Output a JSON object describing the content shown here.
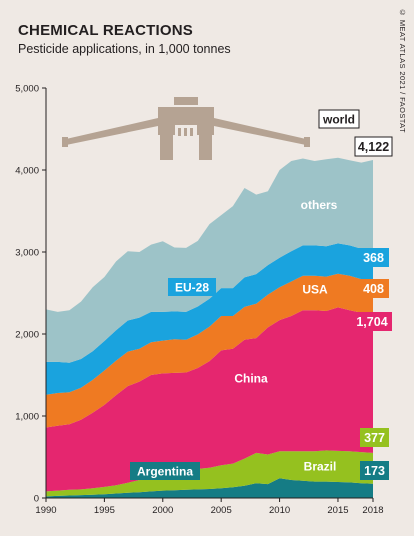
{
  "header": {
    "title": "CHEMICAL REACTIONS",
    "subtitle": "Pesticide applications, in 1,000 tonnes",
    "credit": "© MEAT ATLAS 2021 / FAOSTAT"
  },
  "colors": {
    "background": "#efe9e4",
    "Brazil_base": "#157c85",
    "Argentina": "#95c11f",
    "China": "#e5266f",
    "USA": "#ef7a22",
    "EU-28": "#1aa3de",
    "others": "#9dc3c8",
    "tractor": "#b5a393",
    "dark_label": "#231f20"
  },
  "icons": [
    "tractor-sprayer-icon"
  ],
  "chart_data": {
    "type": "area",
    "stacked": true,
    "xlim": [
      1990,
      2018
    ],
    "ylim": [
      0,
      5000
    ],
    "x_ticks": [
      "1990",
      "1995",
      "2000",
      "2005",
      "2010",
      "2015",
      "2018"
    ],
    "y_ticks": [
      "0",
      "1,000",
      "2,000",
      "3,000",
      "4,000",
      "5,000"
    ],
    "grid": false,
    "x": [
      1990,
      1991,
      1992,
      1993,
      1994,
      1995,
      1996,
      1997,
      1998,
      1999,
      2000,
      2001,
      2002,
      2003,
      2004,
      2005,
      2006,
      2007,
      2008,
      2009,
      2010,
      2011,
      2012,
      2013,
      2014,
      2015,
      2016,
      2017,
      2018
    ],
    "series": [
      {
        "key": "Brazil_base",
        "values": [
          20,
          25,
          30,
          35,
          40,
          45,
          55,
          65,
          70,
          80,
          90,
          95,
          100,
          105,
          110,
          120,
          130,
          150,
          180,
          170,
          240,
          220,
          210,
          200,
          200,
          195,
          190,
          180,
          173
        ]
      },
      {
        "key": "Argentina",
        "values": [
          60,
          65,
          70,
          70,
          80,
          90,
          100,
          120,
          150,
          170,
          180,
          200,
          230,
          250,
          260,
          280,
          290,
          330,
          370,
          360,
          330,
          350,
          360,
          370,
          380,
          380,
          380,
          380,
          377
        ]
      },
      {
        "key": "China",
        "values": [
          780,
          790,
          800,
          850,
          920,
          1000,
          1100,
          1180,
          1200,
          1250,
          1250,
          1230,
          1200,
          1230,
          1300,
          1400,
          1400,
          1450,
          1400,
          1550,
          1600,
          1650,
          1720,
          1720,
          1700,
          1750,
          1720,
          1700,
          1704
        ]
      },
      {
        "key": "USA",
        "values": [
          400,
          400,
          390,
          390,
          400,
          420,
          420,
          420,
          400,
          400,
          400,
          410,
          400,
          410,
          420,
          420,
          400,
          400,
          420,
          400,
          400,
          420,
          420,
          420,
          420,
          410,
          420,
          410,
          408
        ]
      },
      {
        "key": "EU-28",
        "values": [
          400,
          380,
          360,
          350,
          350,
          360,
          370,
          380,
          380,
          370,
          350,
          340,
          340,
          340,
          340,
          340,
          340,
          360,
          360,
          360,
          360,
          370,
          370,
          370,
          370,
          370,
          370,
          370,
          368
        ]
      },
      {
        "key": "others",
        "values": [
          640,
          610,
          640,
          700,
          780,
          780,
          840,
          845,
          800,
          820,
          860,
          780,
          780,
          800,
          910,
          890,
          1000,
          1090,
          970,
          900,
          1070,
          1100,
          1060,
          1030,
          1060,
          1045,
          1040,
          1050,
          1092
        ]
      }
    ],
    "area_labels": {
      "world": "world",
      "others": "others",
      "EU-28": "EU-28",
      "USA": "USA",
      "China": "China",
      "Argentina": "Argentina",
      "Brazil": "Brazil"
    },
    "end_labels": {
      "world": "4,122",
      "EU-28": "368",
      "USA": "408",
      "China": "1,704",
      "Argentina": "377",
      "Brazil": "173"
    }
  }
}
